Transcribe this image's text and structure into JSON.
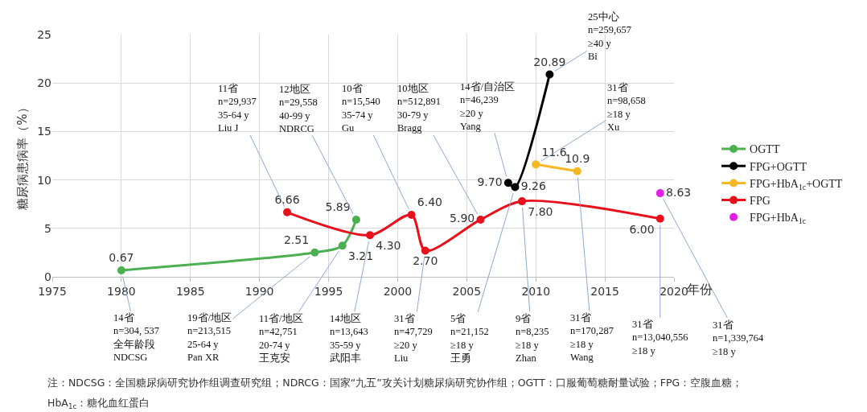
{
  "chart_data": {
    "type": "line",
    "xlabel": "年份",
    "ylabel": "糖尿病患病率（%）",
    "xlim": [
      1975,
      2020
    ],
    "xticks": [
      1975,
      1980,
      1985,
      1990,
      1995,
      2000,
      2005,
      2010,
      2015,
      2020
    ],
    "ylim": [
      0,
      25
    ],
    "yticks": [
      0,
      5,
      10,
      15,
      20,
      25
    ],
    "grid": true,
    "legend": "right",
    "marker": "circle",
    "line_style": "solid",
    "series": [
      {
        "name": "OGTT",
        "color": "#4cb050",
        "x": [
          1980,
          1994,
          1996,
          1997
        ],
        "values": [
          0.67,
          2.51,
          3.21,
          5.89
        ],
        "value_labels": [
          "0.67",
          "2.51",
          "3.21",
          "5.89"
        ]
      },
      {
        "name": "FPG+OGTT",
        "color": "#000000",
        "x": [
          2008,
          2008.5,
          2011
        ],
        "values": [
          9.7,
          9.26,
          20.89
        ],
        "value_labels": [
          "9.70",
          "9.26",
          "20.89"
        ]
      },
      {
        "name": "FPG+HbA$_{1c}$+OGTT",
        "color": "#f5b820",
        "x": [
          2010,
          2013
        ],
        "values": [
          11.6,
          10.9
        ],
        "value_labels": [
          "11.6",
          "10.9"
        ]
      },
      {
        "name": "FPG",
        "color": "#e8101a",
        "x": [
          1992,
          1998,
          2001,
          2002,
          2006,
          2009,
          2019
        ],
        "values": [
          6.66,
          4.3,
          6.4,
          2.7,
          5.9,
          7.8,
          6.0
        ],
        "value_labels": [
          "6.66",
          "4.30",
          "6.40",
          "2.70",
          "5.90",
          "7.80",
          "6.00"
        ]
      },
      {
        "name": "FPG+HbA$_{1c}$",
        "type": "scatter",
        "color": "#e020e8",
        "x": [
          2019
        ],
        "values": [
          8.63
        ],
        "value_labels": [
          "8.63"
        ]
      }
    ],
    "annotations": [
      {
        "text": "11省\nn=29,937\n35-64 y\nLiu J",
        "x": 1992,
        "y": 6.66
      },
      {
        "text": "12地区\nn=29,558\n40-99 y\nNDRCG",
        "x": 1997,
        "y": 5.89
      },
      {
        "text": "10省\nn=15,540\n35-74 y\nGu",
        "x": 2001,
        "y": 6.4
      },
      {
        "text": "10地区\nn=512,891\n30-79 y\nBragg",
        "x": 2006,
        "y": 5.9
      },
      {
        "text": "14省/自治区\nn=46,239\n≥20 y\nYang",
        "x": 2008,
        "y": 9.7
      },
      {
        "text": "25中心\nn=259,657\n≥40 y\nBi",
        "x": 2011,
        "y": 20.89
      },
      {
        "text": "31省\nn=98,658\n≥18 y\nXu",
        "x": 2010,
        "y": 11.6
      },
      {
        "text": "14省\nn=304, 537\n全年龄段\nNDCSG",
        "x": 1980,
        "y": 0.67
      },
      {
        "text": "19省/地区\nn=213,515\n25-64 y\nPan XR",
        "x": 1994,
        "y": 2.51
      },
      {
        "text": "11省/地区\nn=42,751\n20-74 y\n王克安",
        "x": 1996,
        "y": 3.21
      },
      {
        "text": "14地区\nn=13,643\n35-59 y\n武阳丰",
        "x": 1998,
        "y": 4.3
      },
      {
        "text": "31省\nn=47,729\n≥20 y\nLiu",
        "x": 2002,
        "y": 2.7
      },
      {
        "text": "5省\nn=21,152\n≥18 y\n王勇",
        "x": 2008.5,
        "y": 9.26
      },
      {
        "text": "9省\nn=8,235\n≥18 y\nZhan",
        "x": 2009,
        "y": 7.8
      },
      {
        "text": "31省\nn=170,287\n≥18 y\nWang",
        "x": 2013,
        "y": 10.9
      },
      {
        "text": "31省\nn=13,040,556\n≥18 y",
        "x": 2019,
        "y": 6.0
      },
      {
        "text": "31省\nn=1,339,764\n≥18 y",
        "x": 2019,
        "y": 8.63
      },
      "注：NDCSG：全国糖尿病研究协作组调查研究组；NDRCG：国家“九五”攻关计划糖尿病研究协作组；OGTT：口服葡萄糖耐量试验；FPG：空腹血糖；",
      "HbA$_{1c}$：糖化血红蛋白"
    ]
  }
}
